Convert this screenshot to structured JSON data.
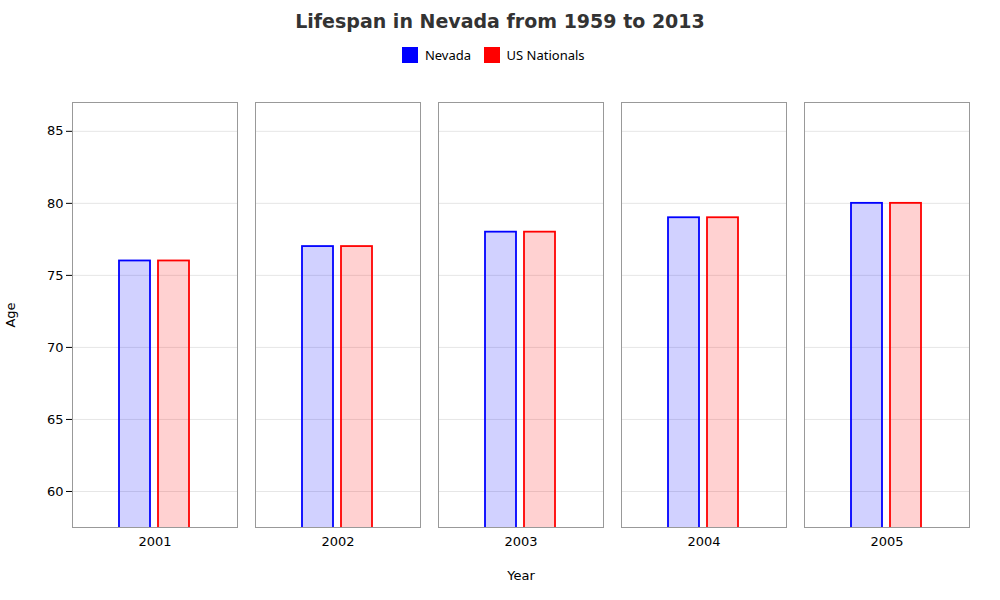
{
  "chart_data": {
    "type": "bar",
    "title": "Lifespan in Nevada from 1959 to 2013",
    "xlabel": "Year",
    "ylabel": "Age",
    "categories": [
      "2001",
      "2002",
      "2003",
      "2004",
      "2005"
    ],
    "series": [
      {
        "name": "Nevada",
        "color": "#0000ff",
        "values": [
          76,
          77,
          78,
          79,
          80
        ]
      },
      {
        "name": "US Nationals",
        "color": "#ff0000",
        "values": [
          76,
          77,
          78,
          79,
          80
        ]
      }
    ],
    "ylim": [
      57.5,
      87
    ],
    "yticks": [
      60,
      65,
      70,
      75,
      80,
      85
    ],
    "grid": true
  }
}
